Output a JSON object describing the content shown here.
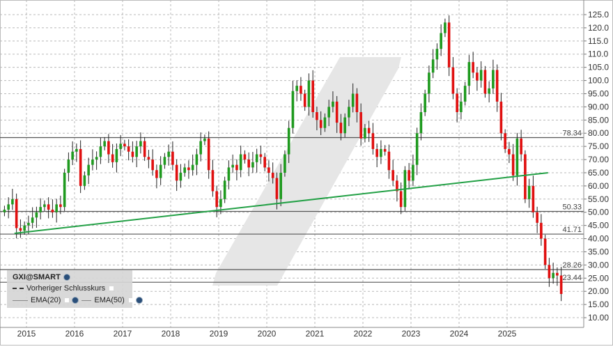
{
  "chart_data": {
    "type": "candlestick",
    "symbol": "GXI@SMART",
    "start": "2014-07",
    "interval": "month",
    "closes": [
      51,
      53,
      55,
      44,
      43,
      45,
      46,
      48,
      50,
      52,
      53,
      51,
      50,
      53,
      52,
      65,
      70,
      73,
      74,
      60,
      64,
      68,
      70,
      71,
      75,
      77,
      72,
      69,
      74,
      76,
      75,
      73,
      71,
      75,
      77,
      71,
      70,
      66,
      63,
      68,
      71,
      73,
      68,
      62,
      65,
      67,
      66,
      68,
      72,
      77,
      78,
      66,
      58,
      52,
      55,
      62,
      67,
      68,
      66,
      72,
      70,
      67,
      69,
      72,
      71,
      67,
      65,
      63,
      55,
      65,
      72,
      82,
      96,
      98,
      95,
      90,
      100,
      88,
      85,
      82,
      86,
      90,
      92,
      84,
      80,
      86,
      90,
      95,
      88,
      78,
      82,
      80,
      74,
      71,
      74,
      73,
      66,
      62,
      58,
      52,
      66,
      62,
      68,
      80,
      88,
      95,
      103,
      108,
      112,
      118,
      122,
      105,
      95,
      88,
      92,
      98,
      107,
      103,
      100,
      104,
      95,
      97,
      104,
      92,
      80,
      74,
      72,
      64,
      78,
      72,
      55,
      60,
      50,
      46,
      40,
      30,
      25,
      27,
      26,
      19
    ],
    "ylim": [
      7.5,
      130
    ],
    "y_ticks": [
      "10.00",
      "15.00",
      "20.00",
      "25.00",
      "30.00",
      "35.00",
      "40.00",
      "45.00",
      "50.00",
      "55.00",
      "60.00",
      "65.00",
      "70.00",
      "75.00",
      "80.00",
      "85.00",
      "90.00",
      "95.00",
      "100.0",
      "105.0",
      "110.0",
      "115.0",
      "120.0",
      "125.0"
    ],
    "x_ticks": [
      "2015",
      "2016",
      "2017",
      "2018",
      "2019",
      "2020",
      "2021",
      "2022",
      "2023",
      "2024",
      "2025"
    ],
    "horizontal_levels": [
      {
        "value": 78.34,
        "label": "78.34"
      },
      {
        "value": 50.33,
        "label": "50.33"
      },
      {
        "value": 41.71,
        "label": "41.71"
      },
      {
        "value": 28.26,
        "label": "28.26"
      },
      {
        "value": 23.44,
        "label": "23.44"
      }
    ],
    "trendline": {
      "from": {
        "date": 2014.75,
        "value": 42
      },
      "to": {
        "date": 2025.85,
        "value": 65
      },
      "color": "#22a045"
    },
    "grid": true,
    "colors": {
      "up": "#1f9a1f",
      "down": "#e01010",
      "level": "#555555",
      "grid": "#b8b8b8"
    }
  },
  "legend": {
    "title": "GXI@SMART",
    "items": [
      {
        "label": "Vorheriger Schlusskurs"
      },
      {
        "label": "EMA(20)"
      },
      {
        "label": "EMA(50)"
      }
    ]
  }
}
